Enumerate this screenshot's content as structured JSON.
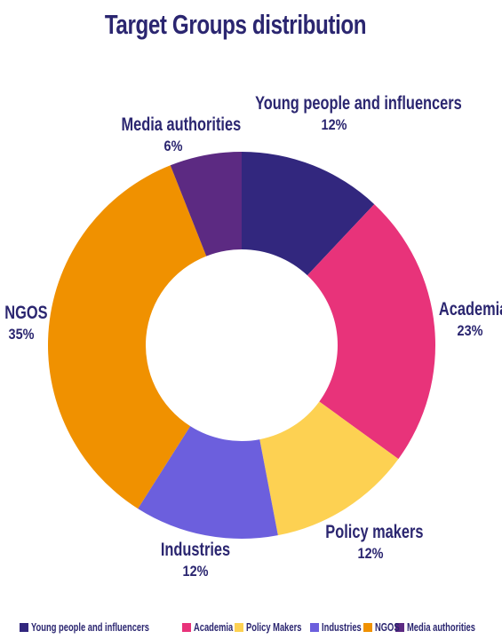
{
  "chart_data": {
    "type": "pie",
    "title": "Target Groups distribution",
    "donut": true,
    "slices": [
      {
        "label": "Young people and influencers",
        "value": 12,
        "value_label": "12%",
        "legend": "Young people and influencers",
        "color": "#32277e"
      },
      {
        "label": "Academia",
        "value": 23,
        "value_label": "23%",
        "legend": "Academia",
        "color": "#e8337a"
      },
      {
        "label": "Policy makers",
        "value": 12,
        "value_label": "12%",
        "legend": "Policy Makers",
        "color": "#fdd152"
      },
      {
        "label": "Industries",
        "value": 12,
        "value_label": "12%",
        "legend": "Industries",
        "color": "#6c5fdd"
      },
      {
        "label": "NGOS",
        "value": 35,
        "value_label": "35%",
        "legend": "NGOS",
        "color": "#f09100"
      },
      {
        "label": "Media authorities",
        "value": 6,
        "value_label": "6%",
        "legend": "Media authorities",
        "color": "#5c2a82"
      }
    ],
    "legend_position": "bottom"
  }
}
